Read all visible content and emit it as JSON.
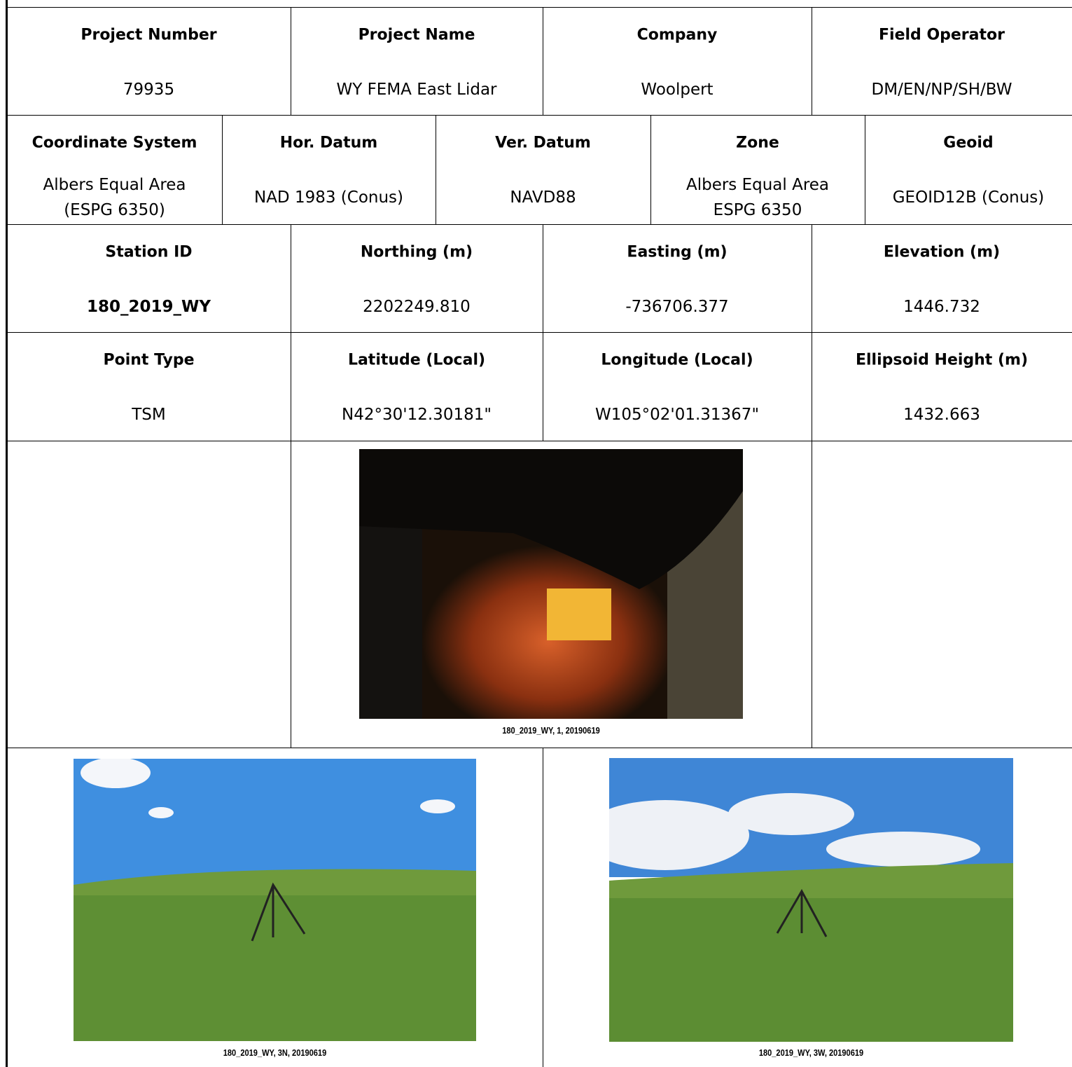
{
  "table": {
    "rows": [
      [
        {
          "label": "Project Number",
          "value": "79935"
        },
        {
          "label": "Project Name",
          "value": "WY FEMA East Lidar"
        },
        {
          "label": "Company",
          "value": "Woolpert"
        },
        {
          "label": "Field Operator",
          "value": "DM/EN/NP/SH/BW"
        }
      ],
      [
        {
          "label": "Coordinate System",
          "value": "Albers Equal Area (ESPG 6350)"
        },
        {
          "label": "Hor. Datum",
          "value": "NAD 1983 (Conus)"
        },
        {
          "label": "Ver. Datum",
          "value": "NAVD88"
        },
        {
          "label": "Zone",
          "value": "Albers Equal Area ESPG 6350"
        },
        {
          "label": "Geoid",
          "value": "GEOID12B (Conus)"
        }
      ],
      [
        {
          "label": "Station ID",
          "value": "180_2019_WY"
        },
        {
          "label": "Northing (m)",
          "value": "2202249.810"
        },
        {
          "label": "Easting (m)",
          "value": "-736706.377"
        },
        {
          "label": "Elevation (m)",
          "value": "1446.732"
        }
      ],
      [
        {
          "label": "Point Type",
          "value": "TSM"
        },
        {
          "label": "Latitude (Local)",
          "value": "N42°30'12.30181\""
        },
        {
          "label": "Longitude (Local)",
          "value": "W105°02'01.31367\""
        },
        {
          "label": "Ellipsoid Height (m)",
          "value": "1432.663"
        }
      ]
    ]
  },
  "photos": [
    {
      "caption": "180_2019_WY, 1, 20190619"
    },
    {
      "caption": "180_2019_WY, 3N, 20190619"
    },
    {
      "caption": "180_2019_WY, 3W, 20190619"
    }
  ]
}
